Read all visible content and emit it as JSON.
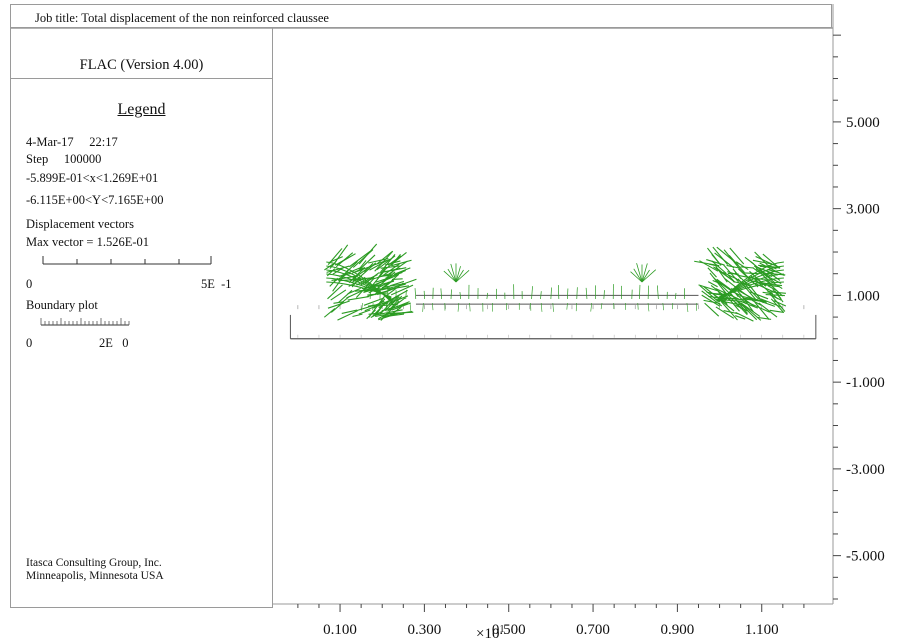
{
  "header": {
    "job_title": "Job title: Total displacement of the non reinforced  claussee"
  },
  "panel": {
    "flac_version": "FLAC (Version 4.00)",
    "legend_title": "Legend",
    "date_time": "4-Mar-17     22:17",
    "step": "Step     100000",
    "x_range": "-5.899E-01<x<1.269E+01",
    "y_range": "-6.115E+00<Y<7.165E+00",
    "displacement_heading": "Displacement vectors",
    "max_vector": "Max vector = 1.526E-01",
    "vector_scale_min": "0",
    "vector_scale_max": "5E  -1",
    "boundary_heading": "Boundary plot",
    "boundary_scale_min": "0",
    "boundary_scale_max": "2E   0",
    "credit_line1": "Itasca Consulting Group, Inc.",
    "credit_line2": "Minneapolis, Minnesota USA"
  },
  "colors": {
    "vectors": "#2b9b22",
    "boundary": "#555555",
    "frame": "#9a9a9a"
  },
  "chart_data": {
    "type": "scatter",
    "description_type": "vector field",
    "x_ticks": [
      "0.100",
      "0.300",
      "0.500",
      "0.700",
      "0.900",
      "1.100"
    ],
    "x_tick_values": [
      0.1,
      0.3,
      0.5,
      0.7,
      0.9,
      1.1
    ],
    "x_multiplier": "×10",
    "x_multiplier_exp": "1",
    "y_ticks": [
      "5.000",
      "3.000",
      "1.000",
      "-1.000",
      "-3.000",
      "-5.000"
    ],
    "y_tick_values": [
      5,
      3,
      1,
      -1,
      -3,
      -5
    ],
    "xlim": [
      -0.059,
      1.269
    ],
    "ylim": [
      -6.115,
      7.165
    ],
    "boundary": {
      "x": [
        -0.0177,
        1.2283
      ],
      "y_top": 1.0,
      "y_step": 0.8,
      "y_bottom": 0.0,
      "inner_x": [
        0.1,
        1.14
      ]
    },
    "grid_x": [
      0.0,
      0.05,
      0.1,
      0.15,
      0.2,
      0.25,
      0.3,
      0.35,
      0.4,
      0.45,
      0.5,
      0.55,
      0.6,
      0.65,
      0.7,
      0.75,
      0.8,
      0.85,
      0.9,
      0.95,
      1.0,
      1.05,
      1.1,
      1.15,
      1.2
    ]
  }
}
